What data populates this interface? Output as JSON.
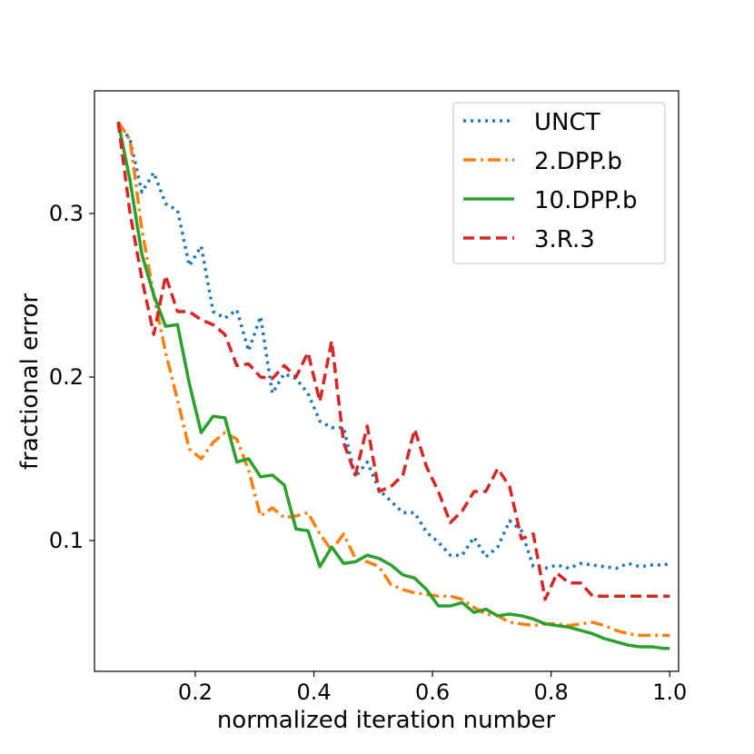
{
  "chart_data": {
    "type": "line",
    "title": "",
    "xlabel": "normalized iteration number",
    "ylabel": "fractional error",
    "xlim": [
      0.03,
      1.015
    ],
    "ylim": [
      0.02,
      0.375
    ],
    "xticks": [
      0.2,
      0.4,
      0.6,
      0.8,
      1.0
    ],
    "xtick_labels": [
      "0.2",
      "0.4",
      "0.6",
      "0.8",
      "1.0"
    ],
    "yticks": [
      0.1,
      0.2,
      0.3
    ],
    "ytick_labels": [
      "0.1",
      "0.2",
      "0.3"
    ],
    "grid": false,
    "legend_position": "upper right",
    "series": [
      {
        "name": "UNCT",
        "color": "#1f77b4",
        "style": "dotted",
        "x": [
          0.07,
          0.09,
          0.11,
          0.13,
          0.15,
          0.17,
          0.19,
          0.21,
          0.23,
          0.25,
          0.27,
          0.29,
          0.31,
          0.33,
          0.35,
          0.37,
          0.39,
          0.41,
          0.43,
          0.45,
          0.47,
          0.49,
          0.51,
          0.53,
          0.55,
          0.57,
          0.59,
          0.61,
          0.63,
          0.65,
          0.67,
          0.69,
          0.71,
          0.73,
          0.75,
          0.77,
          0.79,
          0.81,
          0.83,
          0.85,
          0.87,
          0.89,
          0.91,
          0.93,
          0.95,
          0.97,
          0.99,
          1.0
        ],
        "y": [
          0.356,
          0.345,
          0.313,
          0.325,
          0.306,
          0.302,
          0.268,
          0.28,
          0.24,
          0.236,
          0.241,
          0.216,
          0.237,
          0.19,
          0.202,
          0.199,
          0.19,
          0.173,
          0.169,
          0.169,
          0.139,
          0.148,
          0.131,
          0.124,
          0.117,
          0.117,
          0.105,
          0.099,
          0.091,
          0.091,
          0.102,
          0.09,
          0.096,
          0.112,
          0.106,
          0.084,
          0.083,
          0.085,
          0.083,
          0.086,
          0.085,
          0.084,
          0.083,
          0.086,
          0.084,
          0.085,
          0.085,
          0.086
        ]
      },
      {
        "name": "2.DPP.b",
        "color": "#ff7f0e",
        "style": "dashdot",
        "x": [
          0.07,
          0.09,
          0.11,
          0.13,
          0.15,
          0.17,
          0.19,
          0.21,
          0.23,
          0.25,
          0.27,
          0.29,
          0.31,
          0.33,
          0.35,
          0.37,
          0.39,
          0.41,
          0.43,
          0.45,
          0.47,
          0.49,
          0.51,
          0.53,
          0.55,
          0.57,
          0.59,
          0.61,
          0.63,
          0.65,
          0.67,
          0.69,
          0.71,
          0.73,
          0.75,
          0.77,
          0.79,
          0.81,
          0.83,
          0.85,
          0.87,
          0.89,
          0.91,
          0.93,
          0.95,
          0.97,
          0.99,
          1.0
        ],
        "y": [
          0.356,
          0.345,
          0.29,
          0.25,
          0.215,
          0.186,
          0.156,
          0.15,
          0.16,
          0.166,
          0.162,
          0.143,
          0.115,
          0.12,
          0.114,
          0.115,
          0.117,
          0.104,
          0.094,
          0.104,
          0.089,
          0.087,
          0.084,
          0.073,
          0.07,
          0.068,
          0.067,
          0.066,
          0.066,
          0.064,
          0.059,
          0.055,
          0.054,
          0.05,
          0.049,
          0.048,
          0.049,
          0.049,
          0.048,
          0.049,
          0.05,
          0.048,
          0.045,
          0.043,
          0.042,
          0.042,
          0.042,
          0.042
        ]
      },
      {
        "name": "10.DPP.b",
        "color": "#2ca02c",
        "style": "solid",
        "x": [
          0.07,
          0.09,
          0.11,
          0.13,
          0.15,
          0.17,
          0.19,
          0.21,
          0.23,
          0.25,
          0.27,
          0.29,
          0.31,
          0.33,
          0.35,
          0.37,
          0.39,
          0.41,
          0.43,
          0.45,
          0.47,
          0.49,
          0.51,
          0.53,
          0.55,
          0.57,
          0.59,
          0.61,
          0.63,
          0.65,
          0.67,
          0.69,
          0.71,
          0.73,
          0.75,
          0.77,
          0.79,
          0.81,
          0.83,
          0.85,
          0.87,
          0.89,
          0.91,
          0.93,
          0.95,
          0.97,
          0.99,
          1.0
        ],
        "y": [
          0.356,
          0.32,
          0.275,
          0.25,
          0.231,
          0.232,
          0.196,
          0.166,
          0.176,
          0.175,
          0.148,
          0.15,
          0.139,
          0.14,
          0.134,
          0.107,
          0.106,
          0.084,
          0.096,
          0.086,
          0.087,
          0.091,
          0.089,
          0.085,
          0.079,
          0.077,
          0.07,
          0.06,
          0.06,
          0.062,
          0.056,
          0.058,
          0.054,
          0.055,
          0.054,
          0.052,
          0.049,
          0.048,
          0.047,
          0.045,
          0.043,
          0.04,
          0.038,
          0.036,
          0.035,
          0.035,
          0.034,
          0.034
        ]
      },
      {
        "name": "3.R.3",
        "color": "#d62728",
        "style": "dashed",
        "x": [
          0.07,
          0.09,
          0.11,
          0.13,
          0.15,
          0.17,
          0.19,
          0.21,
          0.23,
          0.25,
          0.27,
          0.29,
          0.31,
          0.33,
          0.35,
          0.37,
          0.39,
          0.41,
          0.43,
          0.45,
          0.47,
          0.49,
          0.51,
          0.53,
          0.55,
          0.57,
          0.59,
          0.61,
          0.63,
          0.65,
          0.67,
          0.69,
          0.71,
          0.73,
          0.75,
          0.77,
          0.79,
          0.81,
          0.83,
          0.85,
          0.87,
          0.89,
          0.91,
          0.93,
          0.95,
          0.97,
          0.99,
          1.0
        ],
        "y": [
          0.356,
          0.3,
          0.26,
          0.226,
          0.262,
          0.24,
          0.24,
          0.235,
          0.232,
          0.226,
          0.207,
          0.208,
          0.2,
          0.199,
          0.207,
          0.2,
          0.215,
          0.185,
          0.222,
          0.16,
          0.14,
          0.17,
          0.13,
          0.133,
          0.14,
          0.168,
          0.145,
          0.13,
          0.111,
          0.118,
          0.13,
          0.13,
          0.144,
          0.133,
          0.101,
          0.104,
          0.064,
          0.08,
          0.074,
          0.074,
          0.066,
          0.066,
          0.066,
          0.066,
          0.066,
          0.066,
          0.066,
          0.066
        ]
      }
    ]
  }
}
